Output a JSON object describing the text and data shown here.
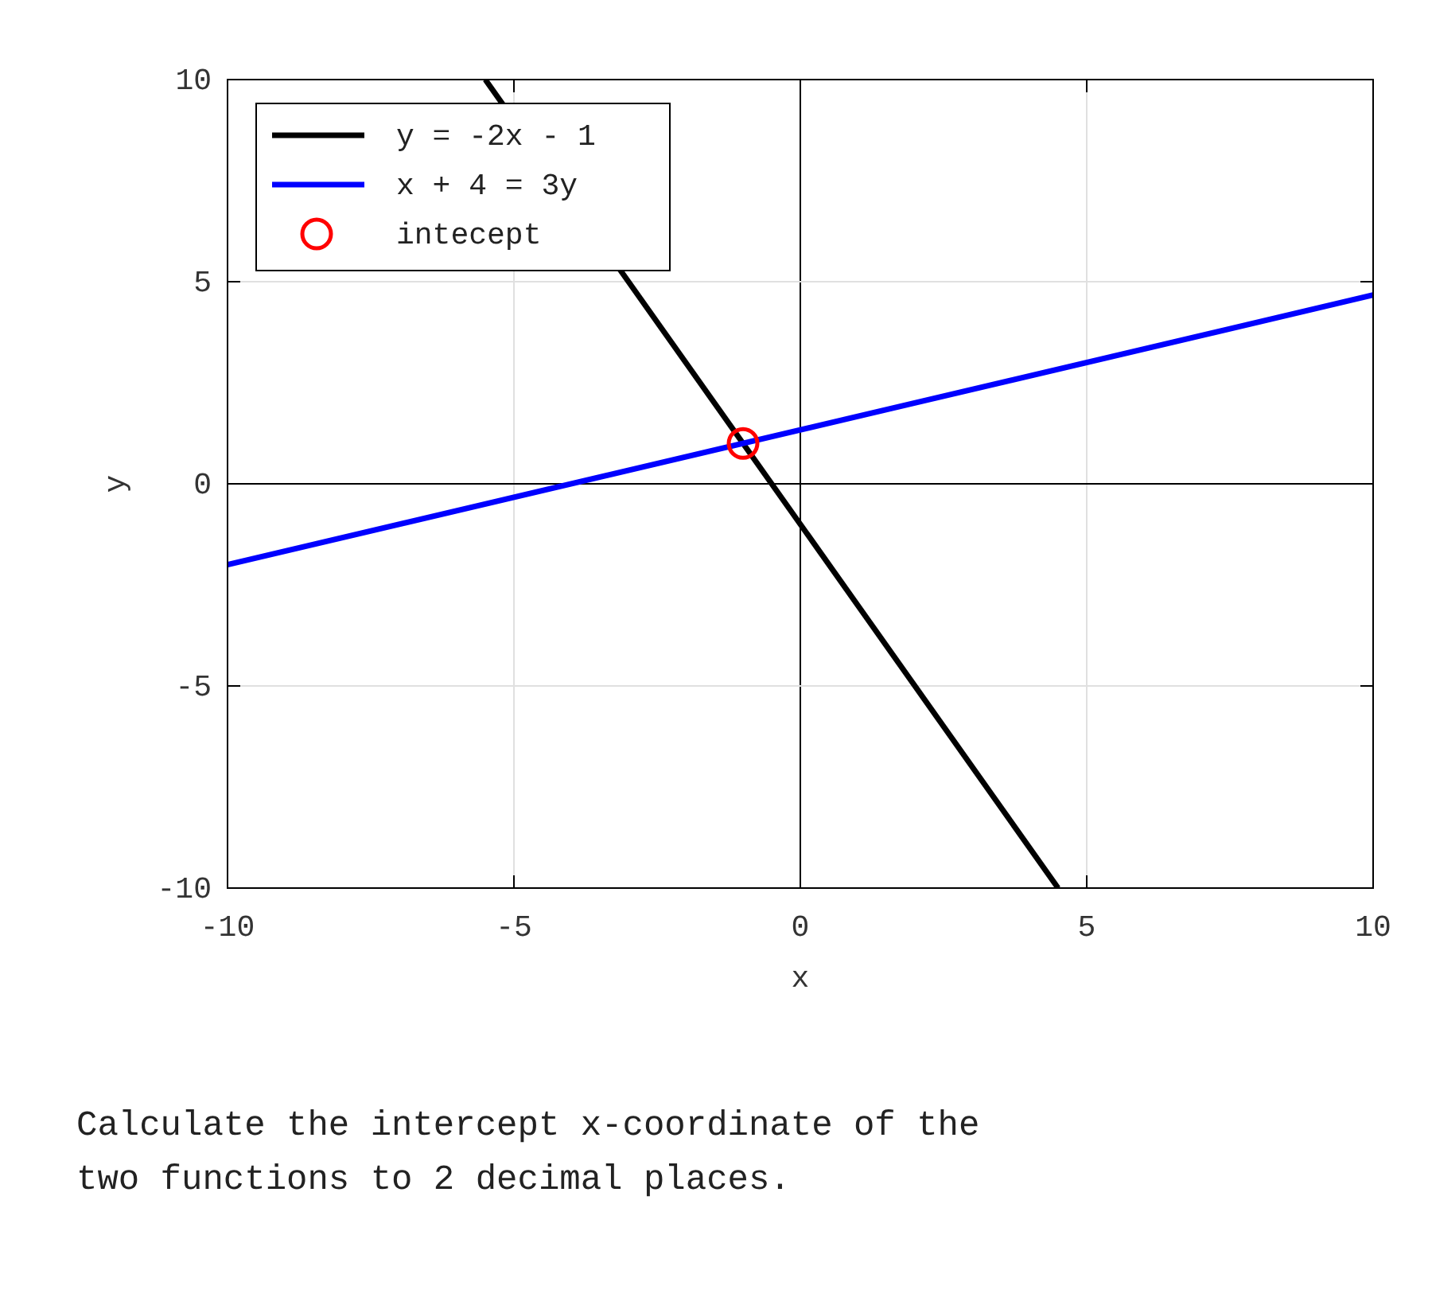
{
  "chart_data": {
    "type": "line",
    "xlabel": "x",
    "ylabel": "y",
    "xlim": [
      -10,
      10
    ],
    "ylim": [
      -10,
      10
    ],
    "xticks": [
      -10,
      -5,
      0,
      5,
      10
    ],
    "yticks": [
      -10,
      -5,
      0,
      5,
      10
    ],
    "grid": true,
    "legend": "top left",
    "series": [
      {
        "name": "y = -2x - 1",
        "color": "#000000",
        "x": [
          -5.5,
          4.5
        ],
        "values": [
          10,
          -10
        ]
      },
      {
        "name": "x + 4 = 3y",
        "color": "#0000ff",
        "x": [
          -10,
          10
        ],
        "values": [
          -2,
          4.67
        ]
      },
      {
        "name": "intecept",
        "type": "scatter",
        "marker": "circle",
        "color": "#ff0000",
        "x": [
          -1
        ],
        "values": [
          1
        ]
      }
    ],
    "annotations": [
      "Calculate the intercept x-coordinate of the two functions to 2 decimal places."
    ]
  }
}
